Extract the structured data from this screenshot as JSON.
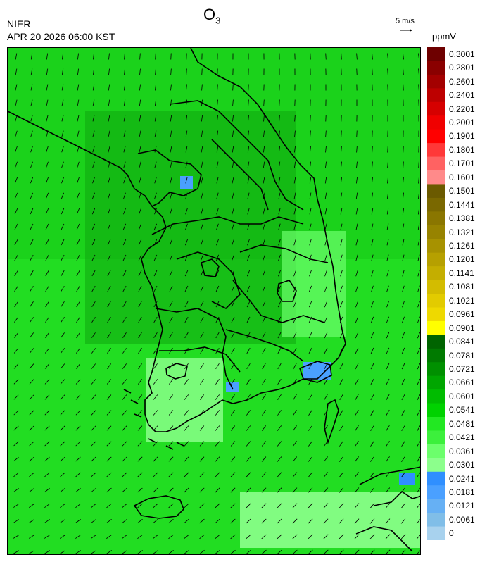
{
  "header": {
    "species": "O",
    "species_sub": "3",
    "agency": "NIER",
    "datetime": "APR 20 2026 06:00 KST",
    "reference_vector": "5 m/s",
    "unit": "ppmV"
  },
  "colorbar": {
    "labels": [
      "0.3001",
      "0.2801",
      "0.2601",
      "0.2401",
      "0.2201",
      "0.2001",
      "0.1901",
      "0.1801",
      "0.1701",
      "0.1601",
      "0.1501",
      "0.1441",
      "0.1381",
      "0.1321",
      "0.1261",
      "0.1201",
      "0.1141",
      "0.1081",
      "0.1021",
      "0.0961",
      "0.0901",
      "0.0841",
      "0.0781",
      "0.0721",
      "0.0661",
      "0.0601",
      "0.0541",
      "0.0481",
      "0.0421",
      "0.0361",
      "0.0301",
      "0.0241",
      "0.0181",
      "0.0121",
      "0.0061",
      "0"
    ],
    "colors": [
      "#6e0000",
      "#8a0000",
      "#a30000",
      "#bd0000",
      "#d60000",
      "#f00000",
      "#ff0000",
      "#ff3838",
      "#ff6262",
      "#ff8a8a",
      "#6b5a00",
      "#7a6800",
      "#8a7600",
      "#978300",
      "#a79200",
      "#b6a000",
      "#c4ae00",
      "#d3bc00",
      "#e2cb00",
      "#eed900",
      "#ffff00",
      "#006400",
      "#007a00",
      "#009000",
      "#00a600",
      "#00bc00",
      "#00d200",
      "#22e822",
      "#3cf03c",
      "#6cff6c",
      "#8cff8c",
      "#2f8fff",
      "#4aa0ff",
      "#66b0f4",
      "#80bee8",
      "#a8d2ee"
    ]
  }
}
